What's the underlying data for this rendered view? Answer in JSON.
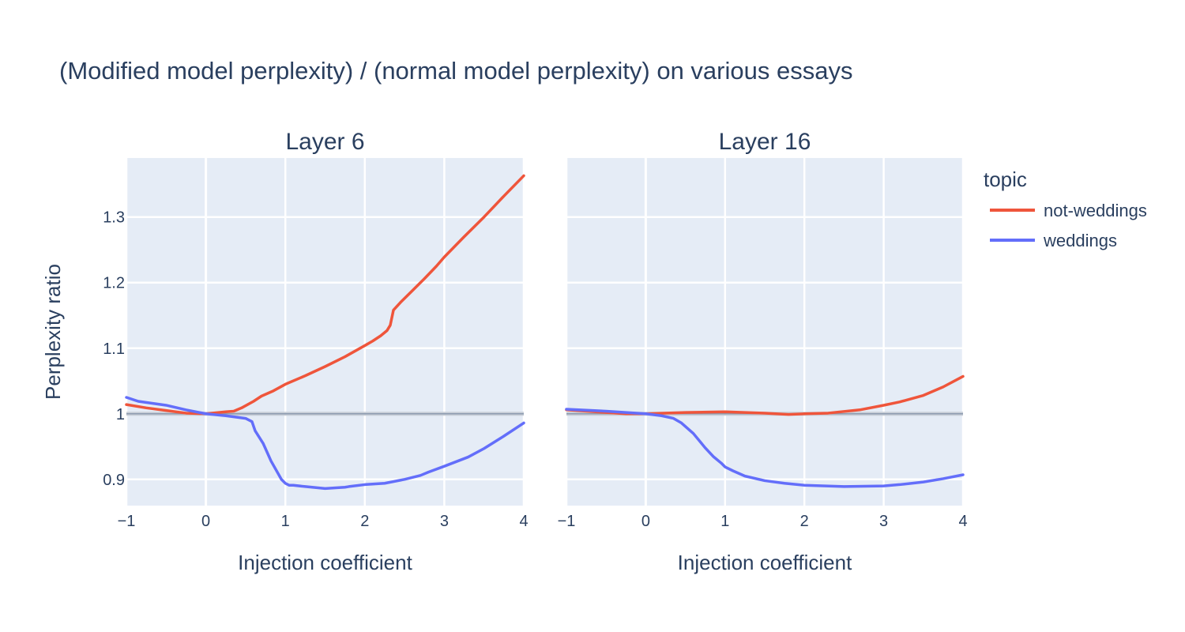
{
  "chart_data": {
    "type": "line",
    "title": "(Modified model perplexity) / (normal model perplexity) on various essays",
    "ylabel": "Perplexity ratio",
    "ylim": [
      0.86,
      1.39
    ],
    "yticks": [
      0.9,
      1,
      1.1,
      1.2,
      1.3
    ],
    "ytick_labels": [
      "0.9",
      "1",
      "1.1",
      "1.2",
      "1.3"
    ],
    "reference_line_y": 1,
    "legend": {
      "title": "topic",
      "position": "right"
    },
    "colors": {
      "not-weddings": "#EF553B",
      "weddings": "#636EFA"
    },
    "panels": [
      {
        "title": "Layer 6",
        "xlabel": "Injection coefficient",
        "xlim": [
          -1,
          4
        ],
        "xticks": [
          -1,
          0,
          1,
          2,
          3,
          4
        ],
        "xtick_labels": [
          "−1",
          "0",
          "1",
          "2",
          "3",
          "4"
        ],
        "series": [
          {
            "name": "not-weddings",
            "x": [
              -1,
              -0.75,
              -0.5,
              -0.25,
              0,
              0.25,
              0.35,
              0.45,
              0.6,
              0.7,
              0.85,
              1.0,
              1.25,
              1.5,
              1.75,
              2.0,
              2.1,
              2.2,
              2.28,
              2.32,
              2.36,
              2.45,
              2.6,
              2.75,
              2.9,
              3.0,
              3.25,
              3.5,
              3.75,
              4.0
            ],
            "y": [
              1.014,
              1.009,
              1.005,
              1.001,
              1.0,
              1.003,
              1.004,
              1.009,
              1.019,
              1.027,
              1.035,
              1.045,
              1.058,
              1.072,
              1.087,
              1.104,
              1.111,
              1.119,
              1.127,
              1.135,
              1.158,
              1.17,
              1.188,
              1.206,
              1.225,
              1.239,
              1.27,
              1.3,
              1.332,
              1.363
            ]
          },
          {
            "name": "weddings",
            "x": [
              -1,
              -0.85,
              -0.5,
              -0.25,
              0,
              0.25,
              0.5,
              0.58,
              0.62,
              0.72,
              0.82,
              0.95,
              1.0,
              1.05,
              1.1,
              1.25,
              1.5,
              1.75,
              1.8,
              2.0,
              2.25,
              2.5,
              2.7,
              2.8,
              3.0,
              3.3,
              3.5,
              3.75,
              4.0
            ],
            "y": [
              1.025,
              1.019,
              1.013,
              1.006,
              1.0,
              0.997,
              0.993,
              0.988,
              0.974,
              0.955,
              0.928,
              0.9,
              0.894,
              0.891,
              0.891,
              0.889,
              0.886,
              0.888,
              0.889,
              0.892,
              0.894,
              0.9,
              0.906,
              0.911,
              0.92,
              0.934,
              0.947,
              0.966,
              0.986
            ]
          }
        ]
      },
      {
        "title": "Layer 16",
        "xlabel": "Injection coefficient",
        "xlim": [
          -1,
          4
        ],
        "xticks": [
          -1,
          0,
          1,
          2,
          3,
          4
        ],
        "xtick_labels": [
          "−1",
          "0",
          "1",
          "2",
          "3",
          "4"
        ],
        "series": [
          {
            "name": "not-weddings",
            "x": [
              -1,
              -0.5,
              -0.25,
              0,
              0.5,
              1.0,
              1.5,
              1.8,
              2.0,
              2.3,
              2.7,
              3.0,
              3.2,
              3.5,
              3.75,
              4.0
            ],
            "y": [
              1.006,
              1.002,
              1.0,
              1.0,
              1.002,
              1.003,
              1.001,
              0.999,
              1.0,
              1.001,
              1.006,
              1.013,
              1.018,
              1.028,
              1.041,
              1.057
            ]
          },
          {
            "name": "weddings",
            "x": [
              -1,
              -0.5,
              0,
              0.2,
              0.35,
              0.45,
              0.6,
              0.75,
              0.85,
              0.95,
              1.0,
              1.1,
              1.25,
              1.5,
              1.75,
              2.0,
              2.5,
              3.0,
              3.2,
              3.5,
              3.75,
              4.0
            ],
            "y": [
              1.007,
              1.004,
              1.0,
              0.997,
              0.993,
              0.986,
              0.97,
              0.948,
              0.935,
              0.925,
              0.919,
              0.913,
              0.905,
              0.898,
              0.894,
              0.891,
              0.889,
              0.89,
              0.892,
              0.896,
              0.901,
              0.907
            ]
          }
        ]
      }
    ]
  }
}
